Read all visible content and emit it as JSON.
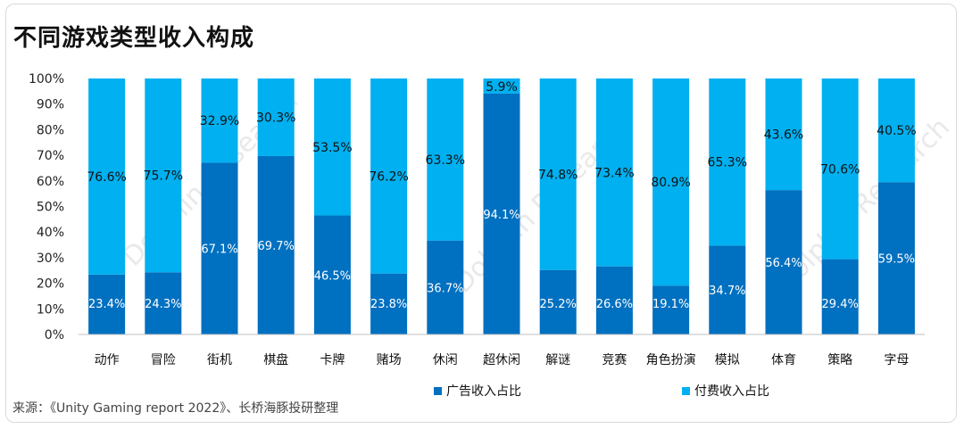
{
  "title": "不同游戏类型收入构成",
  "source": "来源：《Unity Gaming report 2022》、长桥海豚投研整理",
  "watermark": "Dolphin Research",
  "colors": {
    "ad": "#0070c0",
    "paid": "#00b0f0",
    "axis": "#bfbfbf"
  },
  "chart_data": {
    "type": "bar",
    "stacked": true,
    "categories": [
      "动作",
      "冒险",
      "街机",
      "棋盘",
      "卡牌",
      "赌场",
      "休闲",
      "超休闲",
      "解谜",
      "竞赛",
      "角色扮演",
      "模拟",
      "体育",
      "策略",
      "字母"
    ],
    "series": [
      {
        "name": "广告收入占比",
        "values": [
          23.4,
          24.3,
          67.1,
          69.7,
          46.5,
          23.8,
          36.7,
          94.1,
          25.2,
          26.6,
          19.1,
          34.7,
          56.4,
          29.4,
          59.5
        ]
      },
      {
        "name": "付费收入占比",
        "values": [
          76.6,
          75.7,
          32.9,
          30.3,
          53.5,
          76.2,
          63.3,
          5.9,
          74.8,
          73.4,
          80.9,
          65.3,
          43.6,
          70.6,
          40.5
        ]
      }
    ],
    "yticks": [
      "0%",
      "10%",
      "20%",
      "30%",
      "40%",
      "50%",
      "60%",
      "70%",
      "80%",
      "90%",
      "100%"
    ],
    "ylim": [
      0,
      100
    ],
    "legend_position": "bottom"
  }
}
